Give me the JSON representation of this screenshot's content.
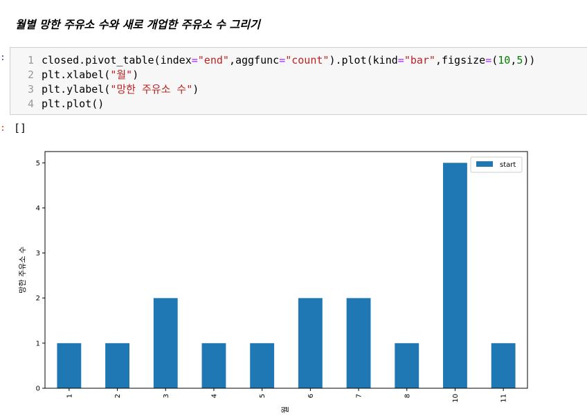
{
  "heading": "월별 망한 주유소 수와 새로 개업한 주유소 수 그리기",
  "prompts": {
    "input": ":",
    "output": ":"
  },
  "code": {
    "line_numbers": [
      "1",
      "2",
      "3",
      "4"
    ],
    "l1": {
      "a": "closed.pivot_table(index",
      "b": "=",
      "c": "\"end\"",
      "d": ",aggfunc",
      "e": "=",
      "f": "\"count\"",
      "g": ").plot(kind",
      "h": "=",
      "i": "\"bar\"",
      "j": ",figsize",
      "k": "=",
      "l": "(",
      "m": "10",
      "n": ",",
      "o": "5",
      "p": "))"
    },
    "l2": {
      "a": "plt.xlabel(",
      "b": "\"월\"",
      "c": ")"
    },
    "l3": {
      "a": "plt.ylabel(",
      "b": "\"망한 주유소 수\"",
      "c": ")"
    },
    "l4": {
      "a": "plt.plot()"
    }
  },
  "output_text": "[]",
  "colors": {
    "bar": "#1f77b4"
  },
  "chart_data": {
    "type": "bar",
    "categories": [
      "1",
      "2",
      "3",
      "4",
      "5",
      "6",
      "7",
      "8",
      "10",
      "11"
    ],
    "series": [
      {
        "name": "start",
        "values": [
          1,
          1,
          2,
          1,
          1,
          2,
          2,
          1,
          5,
          1
        ]
      }
    ],
    "title": "",
    "xlabel": "월",
    "ylabel": "망한 주유소 수",
    "ylim": [
      0,
      5.25
    ],
    "yticks": [
      "0",
      "1",
      "2",
      "3",
      "4",
      "5"
    ],
    "legend": "top-right",
    "grid": false
  }
}
